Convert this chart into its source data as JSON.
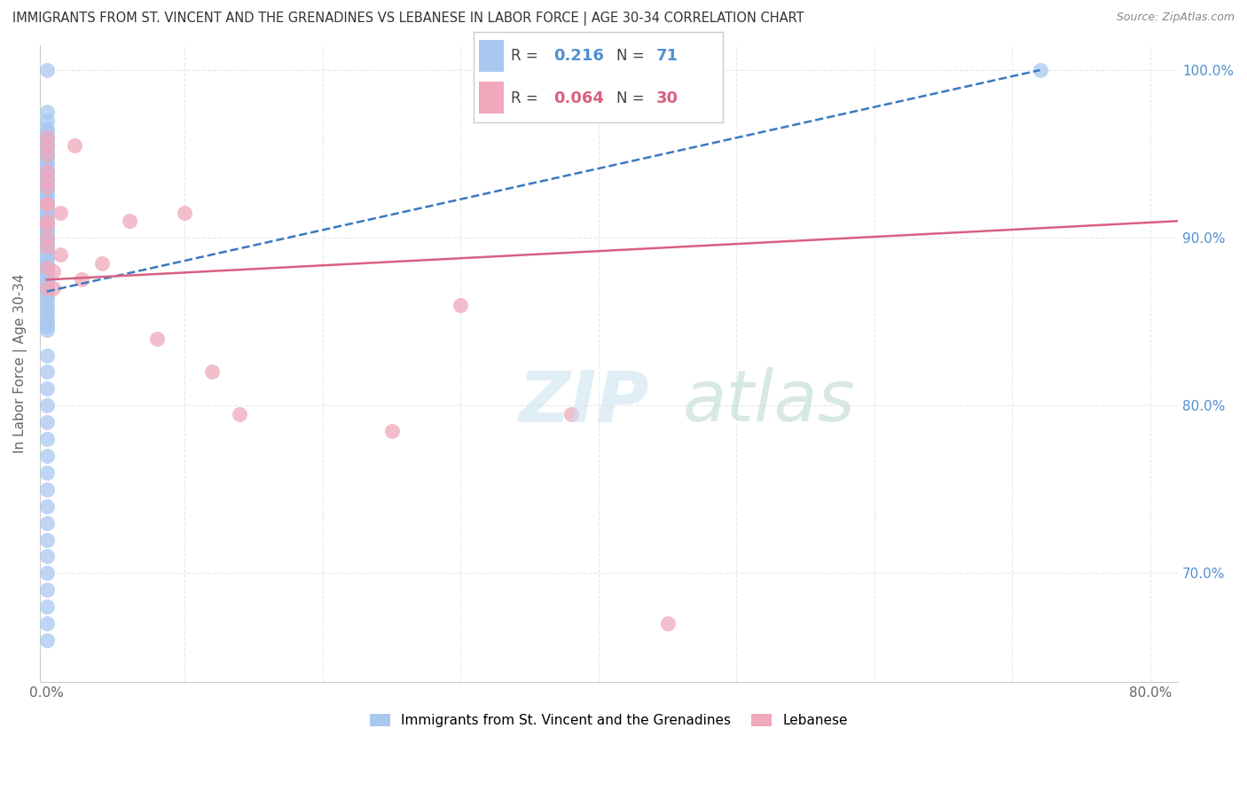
{
  "title": "IMMIGRANTS FROM ST. VINCENT AND THE GRENADINES VS LEBANESE IN LABOR FORCE | AGE 30-34 CORRELATION CHART",
  "source": "Source: ZipAtlas.com",
  "ylabel": "In Labor Force | Age 30-34",
  "xlim": [
    -0.005,
    0.82
  ],
  "ylim": [
    0.635,
    1.015
  ],
  "xticks": [
    0.0,
    0.1,
    0.2,
    0.3,
    0.4,
    0.5,
    0.6,
    0.7,
    0.8
  ],
  "xticklabels": [
    "0.0%",
    "",
    "",
    "",
    "",
    "",
    "",
    "",
    "80.0%"
  ],
  "yticks_right": [
    0.7,
    0.8,
    0.9,
    1.0
  ],
  "yticklabels_right": [
    "70.0%",
    "80.0%",
    "90.0%",
    "100.0%"
  ],
  "blue_color": "#a8c8f0",
  "pink_color": "#f0a8bc",
  "blue_line_color": "#3a7abf",
  "pink_line_color": "#d96080",
  "blue_scatter_x": [
    0.0,
    0.0,
    0.0,
    0.0,
    0.0,
    0.0,
    0.0,
    0.0,
    0.0,
    0.0,
    0.0,
    0.0,
    0.0,
    0.0,
    0.0,
    0.0,
    0.0,
    0.0,
    0.0,
    0.0,
    0.0,
    0.0,
    0.0,
    0.0,
    0.0,
    0.0,
    0.0,
    0.0,
    0.0,
    0.0,
    0.0,
    0.0,
    0.0,
    0.0,
    0.0,
    0.0,
    0.0,
    0.0,
    0.0,
    0.0,
    0.0,
    0.0,
    0.0,
    0.0,
    0.0,
    0.0,
    0.0,
    0.0,
    0.0,
    0.0,
    0.0,
    0.0,
    0.0,
    0.0,
    0.0,
    0.0,
    0.0,
    0.0,
    0.0,
    0.0,
    0.0,
    0.0,
    0.0,
    0.0,
    0.0,
    0.0,
    0.0,
    0.0,
    0.0,
    0.0,
    0.72
  ],
  "blue_scatter_y": [
    1.0,
    0.975,
    0.97,
    0.965,
    0.963,
    0.96,
    0.958,
    0.955,
    0.953,
    0.95,
    0.948,
    0.945,
    0.943,
    0.94,
    0.938,
    0.935,
    0.933,
    0.93,
    0.928,
    0.925,
    0.923,
    0.92,
    0.918,
    0.915,
    0.913,
    0.91,
    0.908,
    0.905,
    0.903,
    0.9,
    0.898,
    0.895,
    0.893,
    0.89,
    0.888,
    0.885,
    0.883,
    0.88,
    0.878,
    0.875,
    0.873,
    0.87,
    0.868,
    0.865,
    0.863,
    0.86,
    0.857,
    0.855,
    0.852,
    0.85,
    0.847,
    0.845,
    0.83,
    0.82,
    0.81,
    0.8,
    0.79,
    0.78,
    0.77,
    0.76,
    0.75,
    0.74,
    0.73,
    0.72,
    0.71,
    0.7,
    0.69,
    0.68,
    0.67,
    0.66,
    1.0
  ],
  "pink_scatter_x": [
    0.0,
    0.0,
    0.0,
    0.0,
    0.0,
    0.0,
    0.01,
    0.01,
    0.02,
    0.025,
    0.04,
    0.06,
    0.08,
    0.1,
    0.12,
    0.14,
    0.25,
    0.3,
    0.38,
    0.45,
    0.005,
    0.005,
    0.0,
    0.0,
    0.0,
    0.0,
    0.0,
    0.0,
    0.0,
    0.0
  ],
  "pink_scatter_y": [
    0.955,
    0.94,
    0.93,
    0.92,
    0.91,
    0.9,
    0.915,
    0.89,
    0.955,
    0.875,
    0.885,
    0.91,
    0.84,
    0.915,
    0.82,
    0.795,
    0.785,
    0.86,
    0.795,
    0.67,
    0.88,
    0.87,
    0.96,
    0.95,
    0.935,
    0.92,
    0.908,
    0.895,
    0.882,
    0.87
  ],
  "blue_trend_x": [
    0.0,
    0.72
  ],
  "blue_trend_y": [
    0.868,
    1.0
  ],
  "pink_trend_x": [
    0.0,
    0.82
  ],
  "pink_trend_y": [
    0.875,
    0.91
  ],
  "grid_color": "#e8e8e8",
  "right_axis_color": "#5090d0"
}
